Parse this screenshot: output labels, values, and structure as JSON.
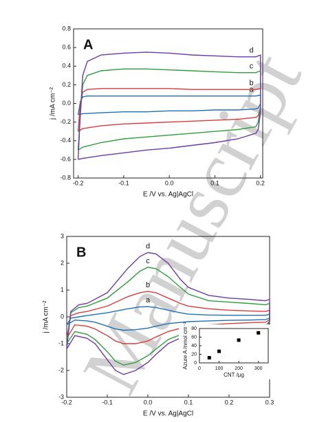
{
  "watermark": "Manuscript",
  "chart_data": [
    {
      "type": "line",
      "title": "A",
      "xlabel": "E /V vs. Ag|AgCl",
      "ylabel": "j /mA cm⁻²",
      "xlim": [
        -0.21,
        0.205
      ],
      "ylim": [
        -0.8,
        0.8
      ],
      "xticks": [
        -0.2,
        -0.1,
        {
          "value": 0,
          "label": "0.0"
        },
        0.1,
        0.2
      ],
      "yticks": [
        -0.8,
        -0.6,
        -0.4,
        -0.2,
        {
          "value": 0,
          "label": "0.0"
        },
        0.2,
        0.4,
        0.6,
        0.8
      ],
      "x": [
        -0.2,
        -0.195,
        -0.19,
        -0.18,
        -0.15,
        -0.1,
        -0.05,
        0,
        0.05,
        0.1,
        0.15,
        0.19,
        0.2,
        0.2,
        0.195,
        0.19,
        0.15,
        0.1,
        0.05,
        0,
        -0.05,
        -0.1,
        -0.15,
        -0.19,
        -0.2
      ],
      "series": [
        {
          "name": "a",
          "color": "#1f6fb5",
          "values": [
            -0.12,
            0.02,
            0.07,
            0.08,
            0.08,
            0.08,
            0.08,
            0.08,
            0.08,
            0.08,
            0.08,
            0.08,
            0.09,
            0.0,
            -0.05,
            -0.06,
            -0.07,
            -0.07,
            -0.08,
            -0.08,
            -0.09,
            -0.09,
            -0.1,
            -0.11,
            -0.12
          ]
        },
        {
          "name": "b",
          "color": "#d93a3a",
          "values": [
            -0.3,
            0.0,
            0.12,
            0.15,
            0.16,
            0.16,
            0.16,
            0.16,
            0.15,
            0.15,
            0.15,
            0.15,
            0.16,
            -0.05,
            -0.13,
            -0.15,
            -0.17,
            -0.18,
            -0.19,
            -0.2,
            -0.21,
            -0.22,
            -0.24,
            -0.27,
            -0.3
          ]
        },
        {
          "name": "c",
          "color": "#2e9e3a",
          "values": [
            -0.5,
            -0.1,
            0.2,
            0.3,
            0.35,
            0.37,
            0.37,
            0.36,
            0.35,
            0.34,
            0.33,
            0.33,
            0.35,
            -0.05,
            -0.2,
            -0.25,
            -0.28,
            -0.3,
            -0.32,
            -0.34,
            -0.36,
            -0.38,
            -0.42,
            -0.47,
            -0.5
          ]
        },
        {
          "name": "d",
          "color": "#6a3aa6",
          "values": [
            -0.6,
            -0.1,
            0.3,
            0.45,
            0.52,
            0.54,
            0.55,
            0.54,
            0.52,
            0.51,
            0.5,
            0.5,
            0.52,
            -0.1,
            -0.28,
            -0.32,
            -0.38,
            -0.42,
            -0.45,
            -0.48,
            -0.5,
            -0.53,
            -0.56,
            -0.59,
            -0.6
          ]
        }
      ]
    },
    {
      "type": "line",
      "title": "B",
      "xlabel": "E /V vs. Ag|AgCl",
      "ylabel": "j /mA cm⁻²",
      "xlim": [
        -0.2,
        0.3
      ],
      "ylim": [
        -3,
        3
      ],
      "xticks": [
        -0.2,
        -0.1,
        {
          "value": 0,
          "label": "0.0"
        },
        0.1,
        0.2,
        0.3
      ],
      "yticks": [
        -3,
        -2,
        -1,
        0,
        1,
        2,
        3
      ],
      "x": [
        -0.2,
        -0.19,
        -0.17,
        -0.15,
        -0.1,
        -0.05,
        -0.02,
        0,
        0.02,
        0.05,
        0.08,
        0.1,
        0.15,
        0.2,
        0.25,
        0.29,
        0.3,
        0.3,
        0.29,
        0.25,
        0.2,
        0.15,
        0.1,
        0.05,
        0.02,
        0,
        -0.03,
        -0.06,
        -0.08,
        -0.1,
        -0.13,
        -0.15,
        -0.18,
        -0.2
      ],
      "series": [
        {
          "name": "a",
          "color": "#1f6fb5",
          "values": [
            -0.3,
            -0.05,
            0.0,
            0.05,
            0.15,
            0.3,
            0.37,
            0.38,
            0.35,
            0.25,
            0.15,
            0.1,
            0.07,
            0.06,
            0.06,
            0.06,
            0.1,
            -0.05,
            -0.1,
            -0.12,
            -0.13,
            -0.15,
            -0.18,
            -0.25,
            -0.35,
            -0.42,
            -0.48,
            -0.5,
            -0.45,
            -0.35,
            -0.2,
            -0.15,
            -0.12,
            -0.3
          ]
        },
        {
          "name": "b",
          "color": "#d93a3a",
          "values": [
            -0.8,
            0.05,
            0.15,
            0.2,
            0.4,
            0.75,
            0.9,
            0.95,
            0.9,
            0.7,
            0.5,
            0.4,
            0.3,
            0.25,
            0.22,
            0.2,
            0.25,
            -0.1,
            -0.2,
            -0.22,
            -0.25,
            -0.3,
            -0.35,
            -0.55,
            -0.75,
            -0.9,
            -1.0,
            -1.0,
            -0.9,
            -0.7,
            -0.45,
            -0.35,
            -0.3,
            -0.8
          ]
        },
        {
          "name": "c",
          "color": "#2e9e3a",
          "values": [
            -1.0,
            0.15,
            0.35,
            0.4,
            0.7,
            1.3,
            1.7,
            1.85,
            1.8,
            1.5,
            1.1,
            0.85,
            0.6,
            0.55,
            0.5,
            0.45,
            0.5,
            -0.15,
            -0.35,
            -0.4,
            -0.4,
            -0.45,
            -0.55,
            -0.85,
            -1.2,
            -1.45,
            -1.7,
            -1.8,
            -1.65,
            -1.3,
            -0.85,
            -0.65,
            -0.55,
            -1.0
          ]
        },
        {
          "name": "d",
          "color": "#6a3aa6",
          "values": [
            -1.2,
            0.2,
            0.45,
            0.5,
            0.9,
            1.8,
            2.25,
            2.4,
            2.35,
            2.0,
            1.4,
            1.1,
            0.8,
            0.7,
            0.65,
            0.6,
            0.65,
            -0.2,
            -0.45,
            -0.5,
            -0.5,
            -0.55,
            -0.65,
            -1.0,
            -1.4,
            -1.7,
            -2.0,
            -2.15,
            -2.0,
            -1.6,
            -1.0,
            -0.8,
            -0.7,
            -1.2
          ]
        }
      ]
    },
    {
      "type": "scatter",
      "xlabel": "CNT /μg",
      "ylabel": "Azure A /nmol cm⁻²",
      "xlim": [
        0,
        350
      ],
      "ylim": [
        0,
        80
      ],
      "xticks": [
        0,
        100,
        200,
        300
      ],
      "yticks": [
        0,
        20,
        40,
        60,
        80
      ],
      "x": [
        50,
        100,
        200,
        300
      ],
      "values": [
        12,
        27,
        53,
        70
      ],
      "color": "#000000"
    }
  ]
}
